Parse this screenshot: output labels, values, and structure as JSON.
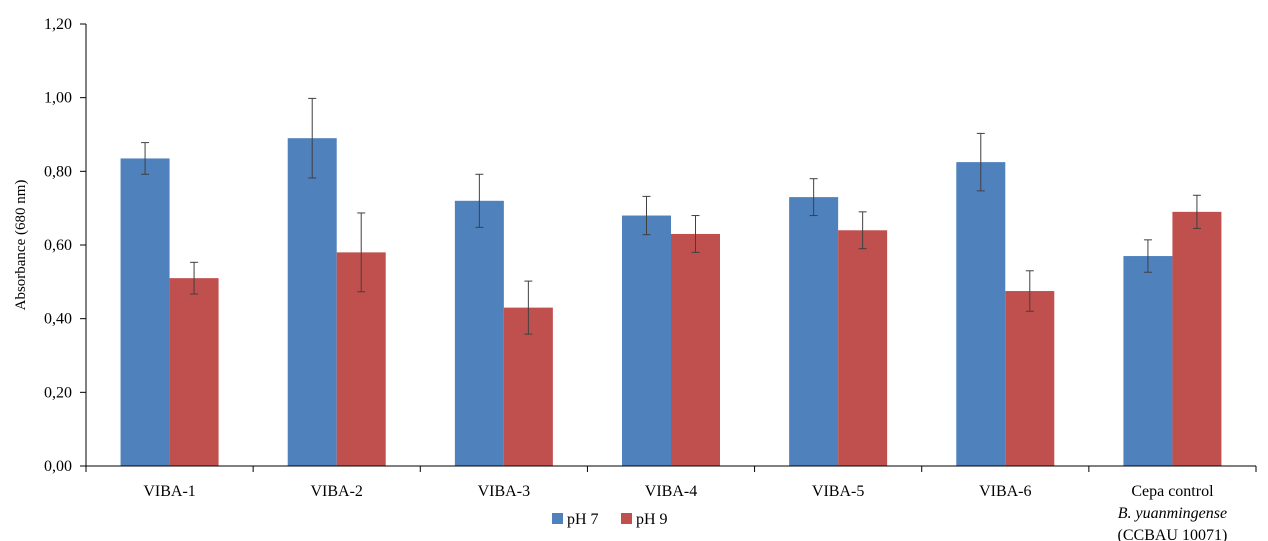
{
  "chart_data": {
    "type": "bar",
    "title": "",
    "xlabel": "",
    "ylabel": "Absorbance  (680 nm)",
    "ylim": [
      0,
      1.2
    ],
    "yticks": [
      "0,00",
      "0,20",
      "0,40",
      "0,60",
      "0,80",
      "1,00",
      "1,20"
    ],
    "y_tick_values": [
      0,
      0.2,
      0.4,
      0.6,
      0.8,
      1.0,
      1.2
    ],
    "grid": false,
    "legend_position": "bottom",
    "categories": [
      [
        "VIBA-1"
      ],
      [
        "VIBA-2"
      ],
      [
        "VIBA-3"
      ],
      [
        "VIBA-4"
      ],
      [
        "VIBA-5"
      ],
      [
        "VIBA-6"
      ],
      [
        "Cepa control",
        "B. yuanmingense",
        "(CCBAU 10071)"
      ]
    ],
    "series": [
      {
        "name": "pH 7",
        "color": "#4f81bd",
        "values": [
          0.835,
          0.89,
          0.72,
          0.68,
          0.73,
          0.825,
          0.57
        ],
        "errors": [
          0.043,
          0.108,
          0.072,
          0.052,
          0.05,
          0.078,
          0.044
        ]
      },
      {
        "name": "pH 9",
        "color": "#c0504d",
        "values": [
          0.51,
          0.58,
          0.43,
          0.63,
          0.64,
          0.475,
          0.69
        ],
        "errors": [
          0.043,
          0.107,
          0.072,
          0.05,
          0.05,
          0.055,
          0.045
        ]
      }
    ]
  }
}
